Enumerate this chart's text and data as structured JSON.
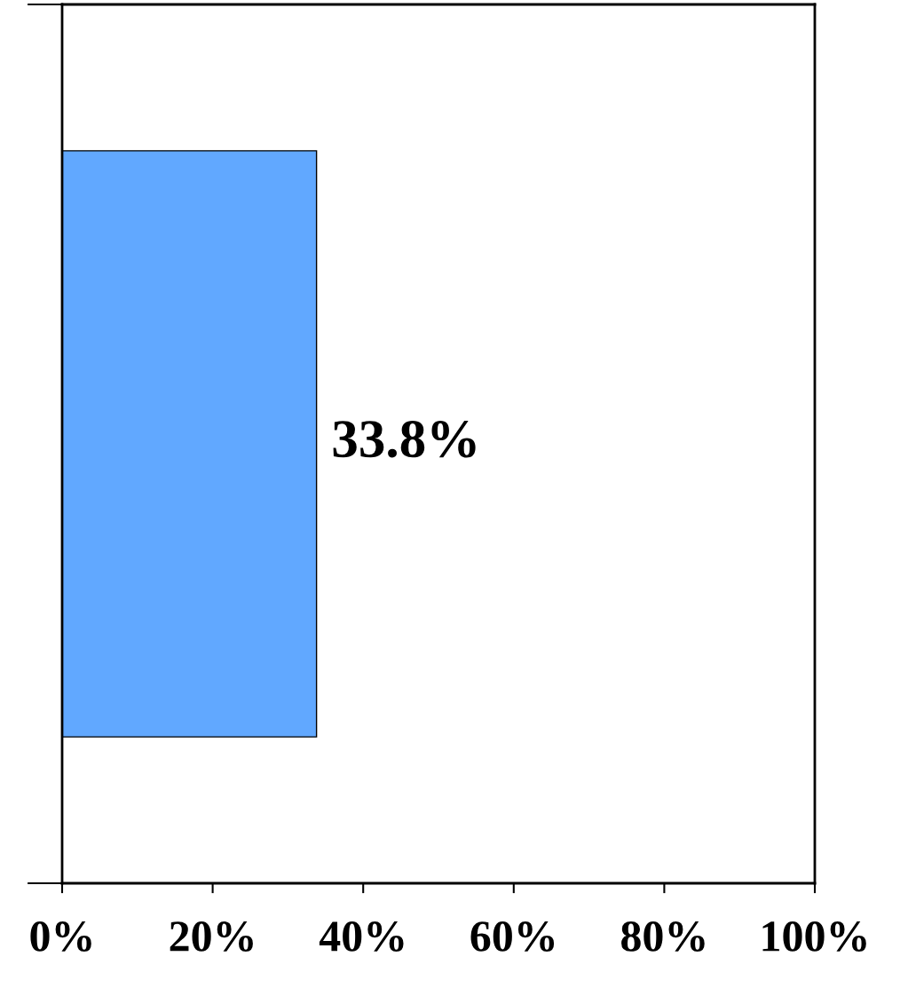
{
  "chart_data": {
    "type": "bar",
    "orientation": "horizontal",
    "categories": [
      null
    ],
    "values": [
      33.8
    ],
    "color": "#61a8ff",
    "xlim": [
      0,
      100
    ],
    "xticks": [
      {
        "value": 0,
        "label": "0%"
      },
      {
        "value": 20,
        "label": "20%"
      },
      {
        "value": 40,
        "label": "40%"
      },
      {
        "value": 60,
        "label": "60%"
      },
      {
        "value": 80,
        "label": "80%"
      },
      {
        "value": 100,
        "label": "100%"
      }
    ],
    "value_labels": [
      "33.8%"
    ],
    "grid": false,
    "legend": false
  }
}
